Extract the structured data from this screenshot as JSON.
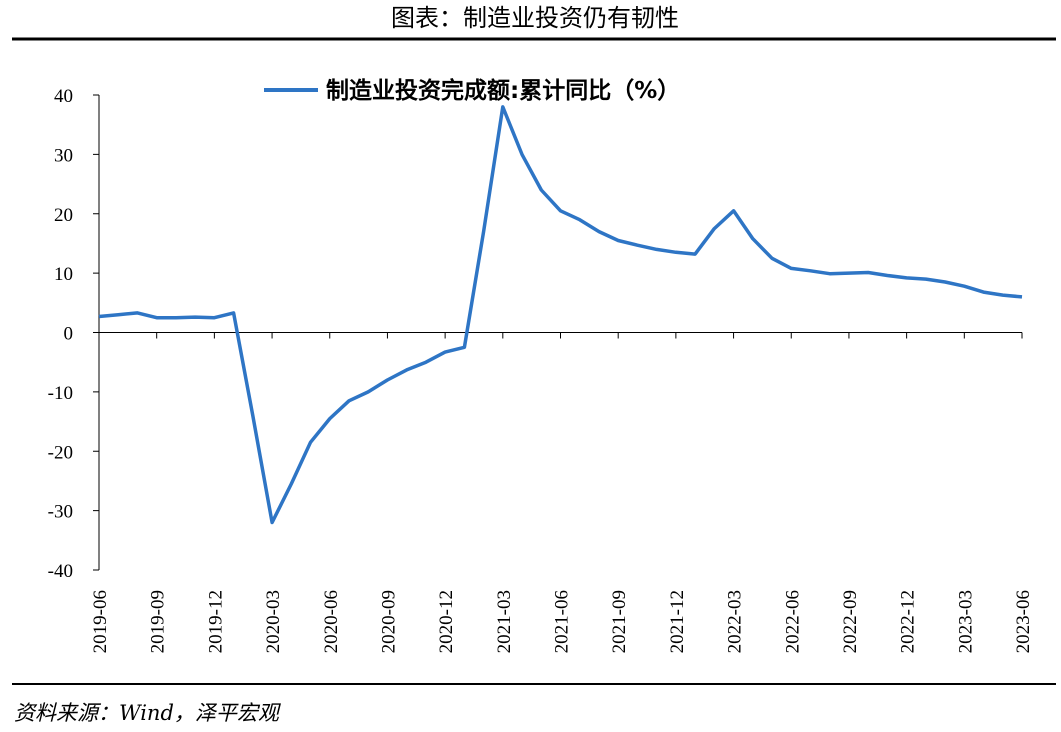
{
  "chart_data": {
    "type": "line",
    "title": "图表：制造业投资仍有韧性",
    "source": "资料来源：Wind，泽平宏观",
    "categories": [
      "2019-06",
      null,
      null,
      "2019-09",
      null,
      null,
      "2019-12",
      null,
      null,
      "2020-03",
      null,
      null,
      "2020-06",
      null,
      null,
      "2020-09",
      null,
      null,
      "2020-12",
      null,
      null,
      "2021-03",
      null,
      null,
      "2021-06",
      null,
      null,
      "2021-09",
      null,
      null,
      "2021-12",
      null,
      null,
      "2022-03",
      null,
      null,
      "2022-06",
      null,
      null,
      "2022-09",
      null,
      null,
      "2022-12",
      null,
      null,
      "2023-03",
      null,
      null,
      "2023-06"
    ],
    "series": [
      {
        "name": "制造业投资完成额:累计同比（%）",
        "color": "#2e75c5",
        "values": [
          2.7,
          3.0,
          3.3,
          2.5,
          2.5,
          2.6,
          2.5,
          3.3,
          -14,
          -32,
          -25.5,
          -18.5,
          -14.5,
          -11.5,
          -10,
          -8,
          -6.3,
          -5,
          -3.3,
          -2.5,
          17,
          38,
          30,
          24,
          20.5,
          19,
          17,
          15.5,
          14.7,
          14,
          13.5,
          13.2,
          17.5,
          20.5,
          15.8,
          12.5,
          10.8,
          10.4,
          9.9,
          10,
          10.1,
          9.6,
          9.2,
          9.0,
          8.5,
          7.8,
          6.8,
          6.3,
          6.0
        ]
      }
    ],
    "ylim": [
      -40,
      40
    ],
    "yticks": [
      40,
      30,
      20,
      10,
      0,
      -10,
      -20,
      -30,
      -40
    ]
  }
}
